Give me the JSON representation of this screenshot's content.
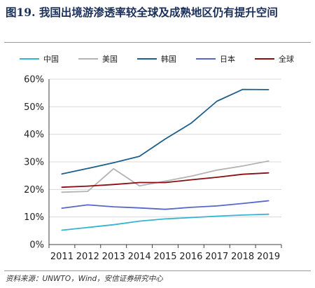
{
  "title": "图19. 我国出境游渗透率较全球及成熟地区仍有提升空间",
  "source": "资料来源：UNWTO，Wind，安信证券研究中心",
  "chart_data": {
    "type": "line",
    "x": [
      "2011",
      "2012",
      "2013",
      "2014",
      "2015",
      "2016",
      "2017",
      "2018",
      "2019"
    ],
    "y_ticks": [
      "0%",
      "10%",
      "20%",
      "30%",
      "40%",
      "50%",
      "60%"
    ],
    "ylim": [
      0,
      60
    ],
    "grid": true,
    "legend_position": "top",
    "series": [
      {
        "name": "中国",
        "color": "#34b4d0",
        "values": [
          5.2,
          6.2,
          7.2,
          8.5,
          9.3,
          9.8,
          10.3,
          10.7,
          11.0
        ]
      },
      {
        "name": "美国",
        "color": "#b3b3b3",
        "values": [
          19.0,
          19.3,
          27.5,
          21.3,
          23.0,
          24.8,
          27.0,
          28.5,
          30.3
        ]
      },
      {
        "name": "韩国",
        "color": "#1c5f8c",
        "values": [
          25.6,
          27.6,
          29.7,
          32.0,
          38.3,
          44.0,
          52.0,
          56.3,
          56.2
        ]
      },
      {
        "name": "日本",
        "color": "#5767c9",
        "values": [
          13.2,
          14.4,
          13.7,
          13.3,
          12.8,
          13.5,
          14.0,
          14.9,
          15.9
        ]
      },
      {
        "name": "全球",
        "color": "#8a0d10",
        "values": [
          20.8,
          21.2,
          21.8,
          22.5,
          22.5,
          23.5,
          24.4,
          25.5,
          26.0
        ]
      }
    ]
  }
}
